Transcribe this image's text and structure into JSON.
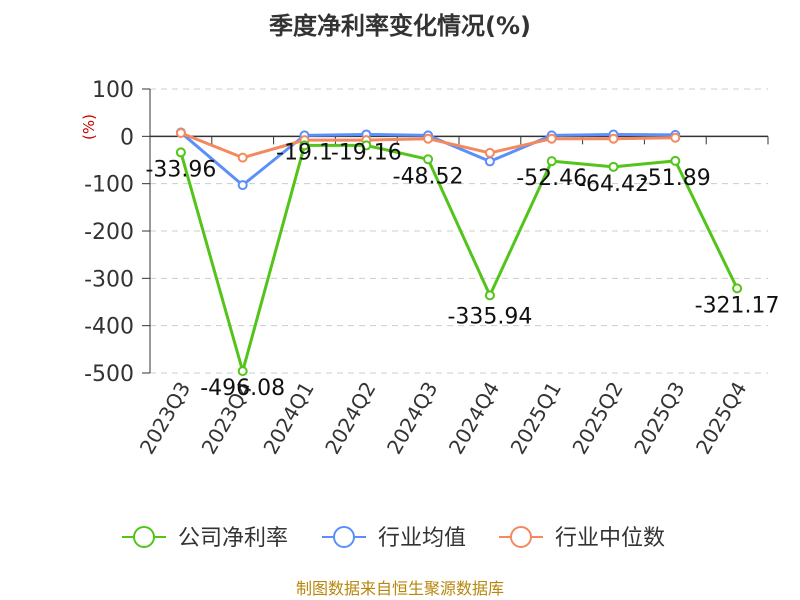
{
  "chart_data": {
    "type": "line",
    "title": "季度净利率变化情况(%)",
    "ylabel": "(%)",
    "ylim": [
      -500,
      100
    ],
    "yticks": [
      100,
      0,
      -100,
      -200,
      -300,
      -400,
      -500
    ],
    "categories": [
      "2023Q3",
      "2023Q4",
      "2024Q1",
      "2024Q2",
      "2024Q3",
      "2024Q4",
      "2025Q1",
      "2025Q2",
      "2025Q3",
      "2025Q4"
    ],
    "grid": true,
    "legend_position": "bottom",
    "series": [
      {
        "name": "公司净利率",
        "color": "#52c41a",
        "values": [
          -33.96,
          -496.08,
          -19.1,
          -19.16,
          -48.52,
          -335.94,
          -52.46,
          -64.42,
          -51.89,
          -321.17
        ],
        "labels": [
          "-33.96",
          "-496.08",
          "-19.1",
          "-19.16",
          "-48.52",
          "-335.94",
          "-52.46",
          "-64.42",
          "-51.89",
          "-321.17"
        ]
      },
      {
        "name": "行业均值",
        "color": "#5b8ff9",
        "values": [
          8,
          -103,
          2,
          4,
          2,
          -53,
          2,
          4,
          3,
          null
        ]
      },
      {
        "name": "行业中位数",
        "color": "#f4895f",
        "values": [
          7,
          -45,
          -8,
          -8,
          -5,
          -35,
          -5,
          -5,
          -3,
          null
        ]
      }
    ]
  },
  "source": "制图数据来自恒生聚源数据库"
}
